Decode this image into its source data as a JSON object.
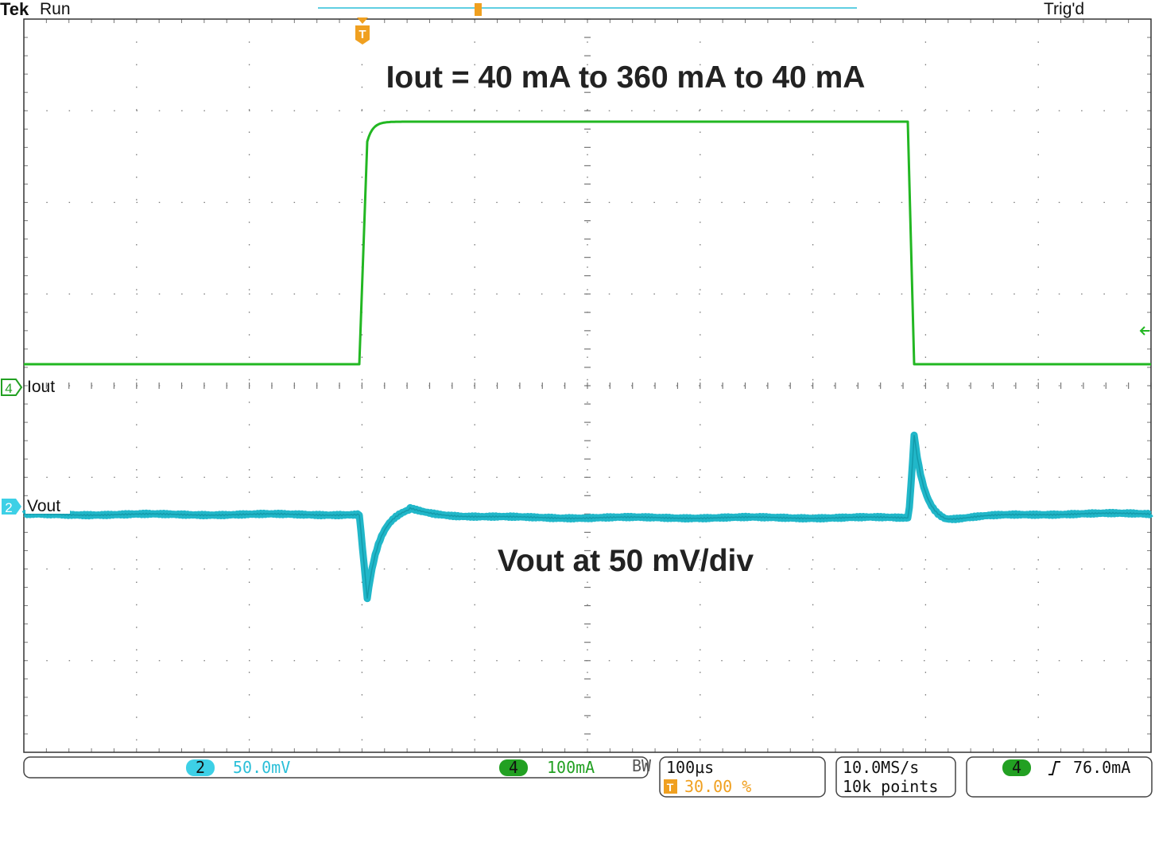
{
  "header": {
    "brand": "Tek",
    "state": "Run",
    "trigger_status": "Trig'd",
    "trigger_marker": "T"
  },
  "annotations": {
    "iout": "Iout = 40 mA to 360 mA to 40 mA",
    "vout": "Vout at 50 mV/div"
  },
  "channels": [
    {
      "number": "4",
      "label": "Iout"
    },
    {
      "number": "2",
      "label": "Vout"
    }
  ],
  "status": {
    "ch2": {
      "number": "2",
      "scale": "50.0mV"
    },
    "ch4": {
      "number": "4",
      "scale": "100mA",
      "bandwidth": "BW"
    },
    "timebase": {
      "scale": "100µs",
      "marker": "T",
      "position": "30.00 %"
    },
    "acquisition": {
      "rate": "10.0MS/s",
      "length": "10k points"
    },
    "trigger": {
      "source": "4",
      "level": "76.0mA"
    }
  }
}
